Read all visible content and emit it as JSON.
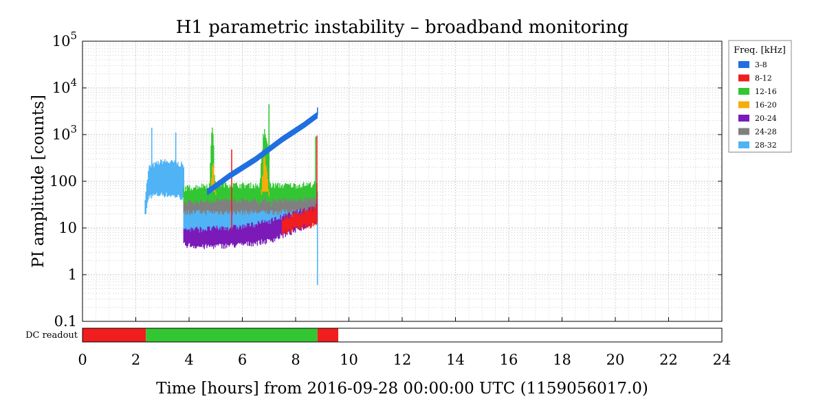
{
  "chart_data": {
    "type": "line",
    "title": "H1 parametric instability – broadband monitoring",
    "xlabel": "Time [hours] from 2016-09-28 00:00:00 UTC (1159056017.0)",
    "ylabel": "PI amplitude [counts]",
    "xlim": [
      0,
      24
    ],
    "ylim": [
      0.1,
      100000
    ],
    "yscale": "log",
    "grid": true,
    "x_ticks": [
      "0",
      "2",
      "4",
      "6",
      "8",
      "10",
      "12",
      "14",
      "16",
      "18",
      "20",
      "22",
      "24"
    ],
    "y_ticks": [
      {
        "value": 0.1,
        "label": "0.1",
        "exp": ""
      },
      {
        "value": 1,
        "label": "1",
        "exp": ""
      },
      {
        "value": 10,
        "label": "10",
        "exp": ""
      },
      {
        "value": 100,
        "label": "100",
        "exp": ""
      },
      {
        "value": 1000,
        "label": "10",
        "exp": "3"
      },
      {
        "value": 10000,
        "label": "10",
        "exp": "4"
      },
      {
        "value": 100000,
        "label": "10",
        "exp": "5"
      }
    ],
    "legend": {
      "title": "Freq. [kHz]",
      "position": "outside-right",
      "entries": [
        {
          "label": "3-8",
          "color": "#1f6fe0"
        },
        {
          "label": "8-12",
          "color": "#f01e1e"
        },
        {
          "label": "12-16",
          "color": "#33c633"
        },
        {
          "label": "16-20",
          "color": "#f5ad0a"
        },
        {
          "label": "20-24",
          "color": "#7b1ab8"
        },
        {
          "label": "24-28",
          "color": "#808080"
        },
        {
          "label": "28-32",
          "color": "#4fb3f5"
        }
      ]
    },
    "series": [
      {
        "name": "28-32",
        "color": "#4fb3f5",
        "lower": [
          [
            2.35,
            20
          ],
          [
            2.5,
            55
          ],
          [
            3,
            60
          ],
          [
            3.5,
            55
          ],
          [
            3.8,
            50
          ]
        ],
        "upper": [
          [
            2.35,
            40
          ],
          [
            2.5,
            170
          ],
          [
            3,
            230
          ],
          [
            3.5,
            210
          ],
          [
            3.8,
            190
          ]
        ],
        "spikes": [
          [
            2.6,
            1400
          ],
          [
            3.5,
            1100
          ]
        ],
        "lower2": [
          [
            3.8,
            9
          ],
          [
            5,
            8
          ],
          [
            6,
            10
          ],
          [
            7,
            12
          ],
          [
            8,
            15
          ],
          [
            8.8,
            22
          ]
        ],
        "upper2": [
          [
            3.8,
            45
          ],
          [
            5,
            40
          ],
          [
            6,
            45
          ],
          [
            7,
            42
          ],
          [
            8,
            40
          ],
          [
            8.8,
            45
          ]
        ],
        "drop": [
          [
            8.82,
            0.6
          ]
        ]
      },
      {
        "name": "24-28",
        "color": "#808080",
        "lower": [
          [
            3.8,
            25
          ],
          [
            5,
            25
          ],
          [
            6,
            25
          ],
          [
            7,
            25
          ],
          [
            8,
            26
          ],
          [
            8.8,
            28
          ]
        ],
        "upper": [
          [
            3.8,
            45
          ],
          [
            5,
            50
          ],
          [
            6,
            45
          ],
          [
            7,
            45
          ],
          [
            8,
            48
          ],
          [
            8.8,
            55
          ]
        ]
      },
      {
        "name": "12-16",
        "color": "#33c633",
        "lower": [
          [
            3.8,
            40
          ],
          [
            5,
            45
          ],
          [
            6,
            45
          ],
          [
            7,
            45
          ],
          [
            8,
            45
          ],
          [
            8.8,
            50
          ]
        ],
        "upper": [
          [
            3.8,
            60
          ],
          [
            5,
            75
          ],
          [
            6,
            70
          ],
          [
            7,
            70
          ],
          [
            8,
            70
          ],
          [
            8.8,
            75
          ]
        ],
        "bursts": [
          {
            "x": [
              4.75,
              5.0
            ],
            "peak": 1400
          },
          {
            "x": [
              6.6,
              7.1
            ],
            "peak": 1600
          }
        ],
        "spikes": [
          [
            7.0,
            4500
          ],
          [
            8.75,
            900
          ]
        ]
      },
      {
        "name": "16-20",
        "color": "#f5ad0a",
        "bursts": [
          {
            "x": [
              4.8,
              5.0
            ],
            "peak": 220
          },
          {
            "x": [
              6.7,
              7.0
            ],
            "peak": 400
          }
        ]
      },
      {
        "name": "20-24",
        "color": "#7b1ab8",
        "lower": [
          [
            3.8,
            5
          ],
          [
            4.5,
            4.5
          ],
          [
            6,
            5
          ],
          [
            7,
            6
          ],
          [
            8,
            10
          ],
          [
            8.8,
            16
          ]
        ],
        "upper": [
          [
            3.8,
            8
          ],
          [
            4.5,
            8
          ],
          [
            6,
            9
          ],
          [
            7,
            12
          ],
          [
            8,
            18
          ],
          [
            8.8,
            26
          ]
        ]
      },
      {
        "name": "8-12",
        "color": "#f01e1e",
        "lower": [
          [
            7.5,
            9
          ],
          [
            8,
            11
          ],
          [
            8.8,
            14
          ]
        ],
        "upper": [
          [
            7.5,
            13
          ],
          [
            8,
            17
          ],
          [
            8.8,
            24
          ]
        ],
        "spikes": [
          [
            5.6,
            480
          ],
          [
            8.8,
            950
          ]
        ]
      },
      {
        "name": "3-8",
        "color": "#1f6fe0",
        "ramp": [
          [
            4.7,
            60
          ],
          [
            5.5,
            130
          ],
          [
            6.5,
            300
          ],
          [
            7.5,
            800
          ],
          [
            8.3,
            1600
          ],
          [
            8.8,
            2600
          ]
        ],
        "spikes": [
          [
            8.82,
            3800
          ]
        ]
      }
    ]
  },
  "dc_readout": {
    "label": "DC readout",
    "segments": [
      {
        "start": 0,
        "end": 2.38,
        "color": "#f01e1e"
      },
      {
        "start": 2.38,
        "end": 8.82,
        "color": "#33c633"
      },
      {
        "start": 8.82,
        "end": 9.6,
        "color": "#f01e1e"
      }
    ]
  }
}
